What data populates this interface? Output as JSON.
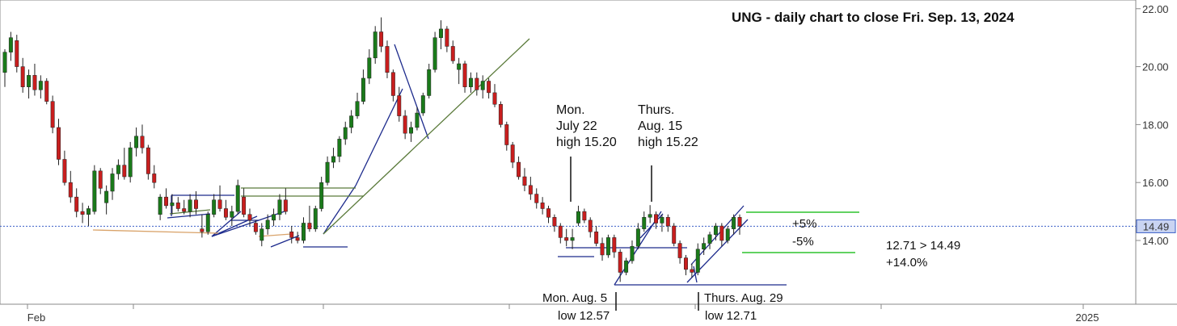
{
  "chart_data": {
    "type": "candlestick",
    "title": "UNG - daily chart to close Fri. Sep. 13, 2024",
    "ylim": [
      11.8,
      22.3
    ],
    "y_ticks": [
      "14.00",
      "16.00",
      "18.00",
      "20.00",
      "22.00"
    ],
    "x_tick_labels": [
      {
        "label": "Feb",
        "date": "2024-02-01"
      },
      {
        "label": "2025",
        "date": "2025-01-01"
      }
    ],
    "last_price": "14.49",
    "grid": false,
    "colors": {
      "up": "#1a7a1a",
      "down": "#c81e1e",
      "trend": "#1c2a8c",
      "olive": "#5a7a3a",
      "pct": "#2fc42f",
      "last": "#3b5fc7"
    },
    "candles_ohlc": [
      [
        19.8,
        20.6,
        19.3,
        20.5
      ],
      [
        20.5,
        21.2,
        20.2,
        21.0
      ],
      [
        20.9,
        21.1,
        19.8,
        20.0
      ],
      [
        20.0,
        20.3,
        19.1,
        19.3
      ],
      [
        19.3,
        19.9,
        18.9,
        19.7
      ],
      [
        19.7,
        20.1,
        19.0,
        19.2
      ],
      [
        19.2,
        19.7,
        18.9,
        19.5
      ],
      [
        19.5,
        19.6,
        18.7,
        18.8
      ],
      [
        18.8,
        19.0,
        17.7,
        17.9
      ],
      [
        17.9,
        18.2,
        16.6,
        16.8
      ],
      [
        16.8,
        17.1,
        15.9,
        16.0
      ],
      [
        16.0,
        16.4,
        15.3,
        15.5
      ],
      [
        15.5,
        15.8,
        14.8,
        15.0
      ],
      [
        15.0,
        15.3,
        14.6,
        14.9
      ],
      [
        14.9,
        15.2,
        14.5,
        15.1
      ],
      [
        15.0,
        16.6,
        14.9,
        16.4
      ],
      [
        16.4,
        16.5,
        15.6,
        15.8
      ],
      [
        15.3,
        15.9,
        14.9,
        15.7
      ],
      [
        15.7,
        16.5,
        15.4,
        16.3
      ],
      [
        16.3,
        16.8,
        16.1,
        16.6
      ],
      [
        16.6,
        17.2,
        16.1,
        16.2
      ],
      [
        16.2,
        17.4,
        16.0,
        17.2
      ],
      [
        17.2,
        17.9,
        16.9,
        17.6
      ],
      [
        17.6,
        18.0,
        17.0,
        17.2
      ],
      [
        17.2,
        17.3,
        16.1,
        16.3
      ],
      [
        16.3,
        16.6,
        15.8,
        16.0
      ],
      [
        14.9,
        15.6,
        14.7,
        15.5
      ],
      [
        15.5,
        15.8,
        15.1,
        15.2
      ],
      [
        15.2,
        15.6,
        14.9,
        15.3
      ],
      [
        15.3,
        15.5,
        15.0,
        15.1
      ],
      [
        15.1,
        15.4,
        14.9,
        15.0
      ],
      [
        15.0,
        15.6,
        14.8,
        15.4
      ],
      [
        15.4,
        15.7,
        14.9,
        15.1
      ],
      [
        14.4,
        14.9,
        14.1,
        14.3
      ],
      [
        14.3,
        15.0,
        14.2,
        14.9
      ],
      [
        14.9,
        15.6,
        14.8,
        15.4
      ],
      [
        15.4,
        15.9,
        15.0,
        15.1
      ],
      [
        15.1,
        15.4,
        14.7,
        14.8
      ],
      [
        14.8,
        15.2,
        14.5,
        15.0
      ],
      [
        15.0,
        16.1,
        14.9,
        15.9
      ],
      [
        15.5,
        15.8,
        14.8,
        14.9
      ],
      [
        14.9,
        15.1,
        14.5,
        14.7
      ],
      [
        14.6,
        14.7,
        14.2,
        14.3
      ],
      [
        14.0,
        14.6,
        13.8,
        14.4
      ],
      [
        14.4,
        14.9,
        14.2,
        14.7
      ],
      [
        14.7,
        15.1,
        14.5,
        14.9
      ],
      [
        14.9,
        15.6,
        14.7,
        15.4
      ],
      [
        15.4,
        15.8,
        14.9,
        15.0
      ],
      [
        14.3,
        14.5,
        13.9,
        14.1
      ],
      [
        14.1,
        14.3,
        13.9,
        14.0
      ],
      [
        14.0,
        14.8,
        13.9,
        14.6
      ],
      [
        14.6,
        15.2,
        14.3,
        14.4
      ],
      [
        14.4,
        15.2,
        14.3,
        15.1
      ],
      [
        15.1,
        16.2,
        15.0,
        16.0
      ],
      [
        16.0,
        16.9,
        15.9,
        16.7
      ],
      [
        16.7,
        17.2,
        16.5,
        16.9
      ],
      [
        16.9,
        17.6,
        16.7,
        17.5
      ],
      [
        17.5,
        18.1,
        17.3,
        17.9
      ],
      [
        17.9,
        18.5,
        17.7,
        18.3
      ],
      [
        18.3,
        19.1,
        18.2,
        18.8
      ],
      [
        18.8,
        19.9,
        18.7,
        19.6
      ],
      [
        19.6,
        20.6,
        19.4,
        20.3
      ],
      [
        20.3,
        21.4,
        20.1,
        21.2
      ],
      [
        21.2,
        21.7,
        20.5,
        20.7
      ],
      [
        20.7,
        20.9,
        19.6,
        19.8
      ],
      [
        19.8,
        19.9,
        18.8,
        19.0
      ],
      [
        19.0,
        19.3,
        18.1,
        18.3
      ],
      [
        18.3,
        18.5,
        17.5,
        17.7
      ],
      [
        17.7,
        18.1,
        17.4,
        17.9
      ],
      [
        17.9,
        18.6,
        17.8,
        18.4
      ],
      [
        18.4,
        19.1,
        18.3,
        19.0
      ],
      [
        19.0,
        20.1,
        18.9,
        19.9
      ],
      [
        19.9,
        21.2,
        19.8,
        21.0
      ],
      [
        21.0,
        21.6,
        20.6,
        21.3
      ],
      [
        21.3,
        21.4,
        20.5,
        20.7
      ],
      [
        20.7,
        20.9,
        20.1,
        20.2
      ],
      [
        19.9,
        20.3,
        19.4,
        20.1
      ],
      [
        20.1,
        20.2,
        19.1,
        19.3
      ],
      [
        19.3,
        19.8,
        19.1,
        19.6
      ],
      [
        19.6,
        19.8,
        19.0,
        19.2
      ],
      [
        19.2,
        19.7,
        18.9,
        19.5
      ],
      [
        19.5,
        19.6,
        18.9,
        19.1
      ],
      [
        19.1,
        19.4,
        18.6,
        18.7
      ],
      [
        18.7,
        18.8,
        17.9,
        18.0
      ],
      [
        18.0,
        18.1,
        17.1,
        17.3
      ],
      [
        17.3,
        17.4,
        16.5,
        16.7
      ],
      [
        16.7,
        16.9,
        16.1,
        16.2
      ],
      [
        16.2,
        16.5,
        15.7,
        15.9
      ],
      [
        15.9,
        16.2,
        15.4,
        15.6
      ],
      [
        15.6,
        15.8,
        15.1,
        15.3
      ],
      [
        15.3,
        15.5,
        14.9,
        15.1
      ],
      [
        15.1,
        15.2,
        14.6,
        14.8
      ],
      [
        14.8,
        14.9,
        14.3,
        14.5
      ],
      [
        14.5,
        14.6,
        13.9,
        14.1
      ],
      [
        14.1,
        14.4,
        13.8,
        14.0
      ],
      [
        14.0,
        14.4,
        13.7,
        14.1
      ],
      [
        14.6,
        15.2,
        14.5,
        15.0
      ],
      [
        15.0,
        15.1,
        14.6,
        14.7
      ],
      [
        14.7,
        14.8,
        14.1,
        14.3
      ],
      [
        14.3,
        14.5,
        13.8,
        13.9
      ],
      [
        13.9,
        14.1,
        13.3,
        13.5
      ],
      [
        13.5,
        14.2,
        13.4,
        14.1
      ],
      [
        14.1,
        14.2,
        13.4,
        13.6
      ],
      [
        13.6,
        13.7,
        12.57,
        12.9
      ],
      [
        12.9,
        13.4,
        12.8,
        13.3
      ],
      [
        13.3,
        14.0,
        13.2,
        13.8
      ],
      [
        13.8,
        14.6,
        13.7,
        14.4
      ],
      [
        14.4,
        15.0,
        14.3,
        14.8
      ],
      [
        14.8,
        15.22,
        14.6,
        14.9
      ],
      [
        14.9,
        15.0,
        14.4,
        14.6
      ],
      [
        14.6,
        14.9,
        14.3,
        14.8
      ],
      [
        14.8,
        14.9,
        14.3,
        14.5
      ],
      [
        14.5,
        14.6,
        13.8,
        13.9
      ],
      [
        13.9,
        14.0,
        13.2,
        13.4
      ],
      [
        13.4,
        13.5,
        12.8,
        13.0
      ],
      [
        13.0,
        13.2,
        12.71,
        12.9
      ],
      [
        12.9,
        13.9,
        12.8,
        13.7
      ],
      [
        13.7,
        14.1,
        13.5,
        13.9
      ],
      [
        13.9,
        14.3,
        13.7,
        14.2
      ],
      [
        14.2,
        14.6,
        14.0,
        14.5
      ],
      [
        14.5,
        14.6,
        13.8,
        14.0
      ],
      [
        14.0,
        14.5,
        13.9,
        14.4
      ],
      [
        14.4,
        14.9,
        14.2,
        14.8
      ],
      [
        14.8,
        14.9,
        14.2,
        14.49
      ]
    ],
    "annotations": {
      "jul22": [
        "Mon.",
        "July 22",
        "high 15.20"
      ],
      "aug15": [
        "Thurs.",
        "Aug. 15",
        "high 15.22"
      ],
      "aug5_a": "Mon. Aug. 5",
      "aug5_b": "low 12.57",
      "aug29_a": "Thurs. Aug. 29",
      "aug29_b": "low 12.71",
      "plus5": "+5%",
      "minus5": "-5%",
      "gain_a": "12.71 > 14.49",
      "gain_b": "+14.0%"
    }
  }
}
